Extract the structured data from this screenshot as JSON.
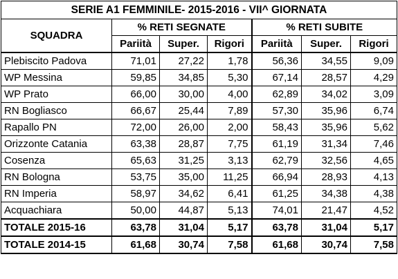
{
  "title": "SERIE A1 FEMMINILE- 2015-2016 - VII^ GIORNATA",
  "headers": {
    "team": "SQUADRA",
    "scored": "% RETI SEGNATE",
    "conceded": "% RETI SUBITE",
    "sub": [
      "Pariità",
      "Super.",
      "Rigori",
      "Pariità",
      "Super.",
      "Rigori"
    ]
  },
  "rows": [
    {
      "team": "Plebiscito Padova",
      "v": [
        "71,01",
        "27,22",
        "1,78",
        "56,36",
        "34,55",
        "9,09"
      ]
    },
    {
      "team": "WP Messina",
      "v": [
        "59,85",
        "34,85",
        "5,30",
        "67,14",
        "28,57",
        "4,29"
      ]
    },
    {
      "team": "WP Prato",
      "v": [
        "66,00",
        "30,00",
        "4,00",
        "62,89",
        "34,02",
        "3,09"
      ]
    },
    {
      "team": "RN Bogliasco",
      "v": [
        "66,67",
        "25,44",
        "7,89",
        "57,30",
        "35,96",
        "6,74"
      ]
    },
    {
      "team": "Rapallo PN",
      "v": [
        "72,00",
        "26,00",
        "2,00",
        "58,43",
        "35,96",
        "5,62"
      ]
    },
    {
      "team": "Orizzonte Catania",
      "v": [
        "63,38",
        "28,87",
        "7,75",
        "61,19",
        "31,34",
        "7,46"
      ]
    },
    {
      "team": "Cosenza",
      "v": [
        "65,63",
        "31,25",
        "3,13",
        "62,79",
        "32,56",
        "4,65"
      ]
    },
    {
      "team": "RN Bologna",
      "v": [
        "53,75",
        "35,00",
        "11,25",
        "66,94",
        "28,93",
        "4,13"
      ]
    },
    {
      "team": "RN Imperia",
      "v": [
        "58,97",
        "34,62",
        "6,41",
        "61,25",
        "34,38",
        "4,38"
      ]
    },
    {
      "team": "Acquachiara",
      "v": [
        "50,00",
        "44,87",
        "5,13",
        "74,01",
        "21,47",
        "4,52"
      ]
    }
  ],
  "totals": [
    {
      "team": "TOTALE 2015-16",
      "v": [
        "63,78",
        "31,04",
        "5,17",
        "63,78",
        "31,04",
        "5,17"
      ]
    },
    {
      "team": "TOTALE 2014-15",
      "v": [
        "61,68",
        "30,74",
        "7,58",
        "61,68",
        "30,74",
        "7,58"
      ]
    }
  ]
}
